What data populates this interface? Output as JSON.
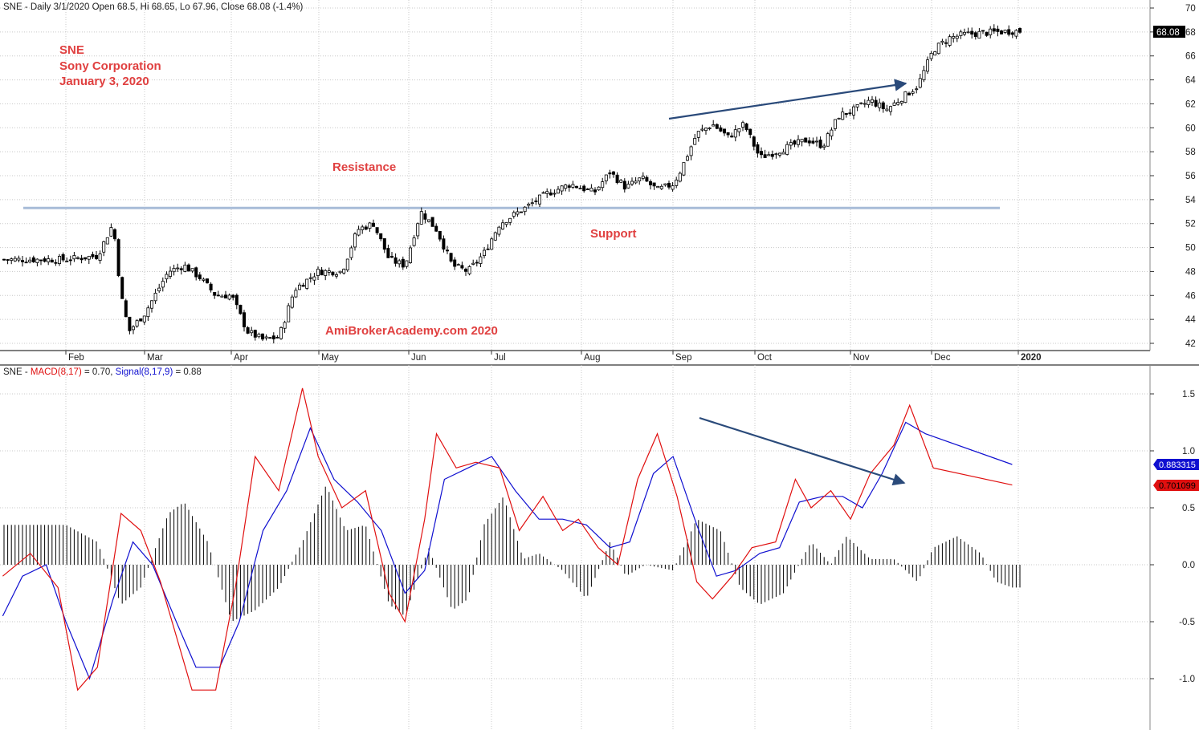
{
  "price_header": {
    "prefix": "SNE - Daily 3/1/2020 Open 68.5, Hi 68.65, Lo 67.96, Close 68.08 (-1.4%)"
  },
  "macd_header": {
    "sym": "SNE - ",
    "macd_label": "MACD(8,17)",
    "macd_value": " = 0.70, ",
    "signal_label": "Signal(8,17,9)",
    "signal_value": " = 0.88"
  },
  "annotations": {
    "ticker": "SNE",
    "company": "Sony Corporation",
    "date": "January 3, 2020",
    "resistance": "Resistance",
    "support": "Support",
    "watermark": "AmiBrokerAcademy.com  2020"
  },
  "badges": {
    "close": "68.08",
    "signal": "0.883315",
    "macd": "0.701099"
  },
  "colors": {
    "macd": "#e01010",
    "signal": "#1010d0",
    "annotation_text": "#e04040",
    "arrow": "#2a4a7a",
    "support_line": "#a8bcd8",
    "grid": "#c8c8c8"
  },
  "chart_data": [
    {
      "type": "candlestick",
      "title": "SNE - Daily",
      "x_ticks": [
        "Feb",
        "Mar",
        "Apr",
        "May",
        "Jun",
        "Jul",
        "Aug",
        "Sep",
        "Oct",
        "Nov",
        "Dec",
        "2020"
      ],
      "y_ticks": [
        42,
        44,
        46,
        48,
        50,
        52,
        54,
        56,
        58,
        60,
        62,
        64,
        66,
        68,
        70
      ],
      "ylim": [
        41.5,
        70.5
      ],
      "horizontal_level": 53.3,
      "trendline": {
        "from": [
          "Sep",
          60.8
        ],
        "to": [
          "Dec",
          63.8
        ]
      },
      "close_points": [
        {
          "x": 0.0,
          "y": 49.0
        },
        {
          "x": 0.4,
          "y": 49.3
        },
        {
          "x": 0.6,
          "y": 52.0
        },
        {
          "x": 0.7,
          "y": 46.0
        },
        {
          "x": 0.8,
          "y": 43.0
        },
        {
          "x": 1.0,
          "y": 44.5
        },
        {
          "x": 1.3,
          "y": 48.0
        },
        {
          "x": 1.5,
          "y": 48.5
        },
        {
          "x": 1.7,
          "y": 47.5
        },
        {
          "x": 1.9,
          "y": 46.0
        },
        {
          "x": 2.1,
          "y": 46.0
        },
        {
          "x": 2.3,
          "y": 43.0
        },
        {
          "x": 2.5,
          "y": 42.3
        },
        {
          "x": 2.7,
          "y": 42.5
        },
        {
          "x": 2.9,
          "y": 46.5
        },
        {
          "x": 3.2,
          "y": 48.0
        },
        {
          "x": 3.5,
          "y": 48.0
        },
        {
          "x": 3.7,
          "y": 51.5
        },
        {
          "x": 3.9,
          "y": 52.0
        },
        {
          "x": 4.1,
          "y": 49.0
        },
        {
          "x": 4.3,
          "y": 48.5
        },
        {
          "x": 4.5,
          "y": 53.0
        },
        {
          "x": 4.7,
          "y": 51.5
        },
        {
          "x": 4.9,
          "y": 48.5
        },
        {
          "x": 5.1,
          "y": 48.0
        },
        {
          "x": 5.3,
          "y": 49.5
        },
        {
          "x": 5.5,
          "y": 52.0
        },
        {
          "x": 5.8,
          "y": 53.2
        },
        {
          "x": 6.1,
          "y": 54.5
        },
        {
          "x": 6.4,
          "y": 55.3
        },
        {
          "x": 6.7,
          "y": 54.6
        },
        {
          "x": 6.9,
          "y": 56.3
        },
        {
          "x": 7.1,
          "y": 55.0
        },
        {
          "x": 7.3,
          "y": 55.8
        },
        {
          "x": 7.5,
          "y": 54.8
        },
        {
          "x": 7.7,
          "y": 55.3
        },
        {
          "x": 7.8,
          "y": 56.5
        },
        {
          "x": 8.0,
          "y": 59.5
        },
        {
          "x": 8.2,
          "y": 60.3
        },
        {
          "x": 8.4,
          "y": 59.2
        },
        {
          "x": 8.6,
          "y": 60.3
        },
        {
          "x": 8.8,
          "y": 57.5
        },
        {
          "x": 9.0,
          "y": 58.0
        },
        {
          "x": 9.2,
          "y": 58.5
        },
        {
          "x": 9.4,
          "y": 59.0
        },
        {
          "x": 9.6,
          "y": 58.5
        },
        {
          "x": 9.8,
          "y": 61.0
        },
        {
          "x": 10.0,
          "y": 61.5
        },
        {
          "x": 10.2,
          "y": 62.3
        },
        {
          "x": 10.4,
          "y": 61.5
        },
        {
          "x": 10.6,
          "y": 62.5
        },
        {
          "x": 10.8,
          "y": 63.5
        },
        {
          "x": 11.0,
          "y": 66.5
        },
        {
          "x": 11.2,
          "y": 67.5
        },
        {
          "x": 11.4,
          "y": 67.8
        },
        {
          "x": 11.6,
          "y": 67.9
        },
        {
          "x": 12.0,
          "y": 68.08
        }
      ]
    },
    {
      "type": "line",
      "title": "MACD(8,17)",
      "y_ticks": [
        -1.0,
        -0.5,
        0.0,
        0.5,
        1.0,
        1.5
      ],
      "ylim": [
        -1.45,
        1.8
      ],
      "series": [
        {
          "name": "MACD(8,17)",
          "values": [
            [
              0.0,
              -0.1
            ],
            [
              0.35,
              0.1
            ],
            [
              0.7,
              -0.2
            ],
            [
              0.95,
              -1.1
            ],
            [
              1.2,
              -0.9
            ],
            [
              1.5,
              0.45
            ],
            [
              1.75,
              0.3
            ],
            [
              2.0,
              -0.15
            ],
            [
              2.4,
              -1.1
            ],
            [
              2.7,
              -1.1
            ],
            [
              2.95,
              -0.2
            ],
            [
              3.2,
              0.95
            ],
            [
              3.5,
              0.65
            ],
            [
              3.8,
              1.55
            ],
            [
              4.0,
              0.95
            ],
            [
              4.3,
              0.5
            ],
            [
              4.6,
              0.65
            ],
            [
              4.9,
              -0.25
            ],
            [
              5.1,
              -0.5
            ],
            [
              5.35,
              0.4
            ],
            [
              5.5,
              1.15
            ],
            [
              5.75,
              0.85
            ],
            [
              6.0,
              0.9
            ],
            [
              6.3,
              0.85
            ],
            [
              6.55,
              0.3
            ],
            [
              6.85,
              0.6
            ],
            [
              7.1,
              0.3
            ],
            [
              7.3,
              0.4
            ],
            [
              7.55,
              0.15
            ],
            [
              7.8,
              0.0
            ],
            [
              8.05,
              0.75
            ],
            [
              8.3,
              1.15
            ],
            [
              8.55,
              0.6
            ],
            [
              8.8,
              -0.15
            ],
            [
              9.0,
              -0.3
            ],
            [
              9.25,
              -0.1
            ],
            [
              9.5,
              0.15
            ],
            [
              9.8,
              0.2
            ],
            [
              10.05,
              0.75
            ],
            [
              10.25,
              0.5
            ],
            [
              10.5,
              0.65
            ],
            [
              10.75,
              0.4
            ],
            [
              11.0,
              0.8
            ],
            [
              11.3,
              1.05
            ],
            [
              11.5,
              1.4
            ],
            [
              11.8,
              0.85
            ],
            [
              12.0,
              0.7
            ]
          ]
        },
        {
          "name": "Signal(8,17,9)",
          "values": [
            [
              0.0,
              -0.45
            ],
            [
              0.25,
              -0.1
            ],
            [
              0.55,
              0.0
            ],
            [
              0.8,
              -0.5
            ],
            [
              1.1,
              -1.0
            ],
            [
              1.4,
              -0.3
            ],
            [
              1.65,
              0.2
            ],
            [
              1.9,
              0.0
            ],
            [
              2.2,
              -0.5
            ],
            [
              2.45,
              -0.9
            ],
            [
              2.75,
              -0.9
            ],
            [
              3.0,
              -0.5
            ],
            [
              3.3,
              0.3
            ],
            [
              3.6,
              0.65
            ],
            [
              3.9,
              1.2
            ],
            [
              4.2,
              0.75
            ],
            [
              4.5,
              0.55
            ],
            [
              4.8,
              0.3
            ],
            [
              5.1,
              -0.25
            ],
            [
              5.35,
              -0.05
            ],
            [
              5.6,
              0.75
            ],
            [
              5.9,
              0.85
            ],
            [
              6.2,
              0.95
            ],
            [
              6.5,
              0.65
            ],
            [
              6.8,
              0.4
            ],
            [
              7.1,
              0.4
            ],
            [
              7.4,
              0.35
            ],
            [
              7.7,
              0.15
            ],
            [
              7.95,
              0.2
            ],
            [
              8.25,
              0.8
            ],
            [
              8.5,
              0.95
            ],
            [
              8.8,
              0.35
            ],
            [
              9.05,
              -0.1
            ],
            [
              9.3,
              -0.05
            ],
            [
              9.6,
              0.1
            ],
            [
              9.85,
              0.15
            ],
            [
              10.1,
              0.55
            ],
            [
              10.4,
              0.6
            ],
            [
              10.65,
              0.6
            ],
            [
              10.9,
              0.5
            ],
            [
              11.15,
              0.8
            ],
            [
              11.45,
              1.25
            ],
            [
              11.7,
              1.15
            ],
            [
              12.0,
              0.88
            ]
          ]
        }
      ],
      "histogram": [
        [
          0.0,
          0.35
        ],
        [
          0.4,
          0.2
        ],
        [
          0.7,
          -0.35
        ],
        [
          0.95,
          -0.2
        ],
        [
          1.3,
          0.45
        ],
        [
          1.5,
          0.55
        ],
        [
          1.8,
          0.2
        ],
        [
          2.1,
          -0.5
        ],
        [
          2.4,
          -0.4
        ],
        [
          2.7,
          -0.2
        ],
        [
          3.0,
          0.2
        ],
        [
          3.3,
          0.7
        ],
        [
          3.55,
          0.3
        ],
        [
          3.8,
          0.35
        ],
        [
          4.1,
          -0.35
        ],
        [
          4.3,
          -0.45
        ],
        [
          4.6,
          0.15
        ],
        [
          4.9,
          -0.4
        ],
        [
          5.1,
          -0.3
        ],
        [
          5.3,
          0.35
        ],
        [
          5.55,
          0.6
        ],
        [
          5.8,
          0.05
        ],
        [
          6.0,
          0.1
        ],
        [
          6.3,
          -0.05
        ],
        [
          6.6,
          -0.3
        ],
        [
          6.9,
          0.2
        ],
        [
          7.1,
          -0.1
        ],
        [
          7.35,
          0.0
        ],
        [
          7.7,
          -0.05
        ],
        [
          8.0,
          0.4
        ],
        [
          8.3,
          0.3
        ],
        [
          8.55,
          -0.2
        ],
        [
          8.8,
          -0.35
        ],
        [
          9.1,
          -0.25
        ],
        [
          9.45,
          0.2
        ],
        [
          9.7,
          0.0
        ],
        [
          9.9,
          0.25
        ],
        [
          10.2,
          0.05
        ],
        [
          10.5,
          0.05
        ],
        [
          10.8,
          -0.15
        ],
        [
          11.0,
          0.15
        ],
        [
          11.3,
          0.25
        ],
        [
          11.6,
          0.1
        ],
        [
          11.8,
          -0.15
        ],
        [
          12.0,
          -0.2
        ]
      ]
    }
  ]
}
